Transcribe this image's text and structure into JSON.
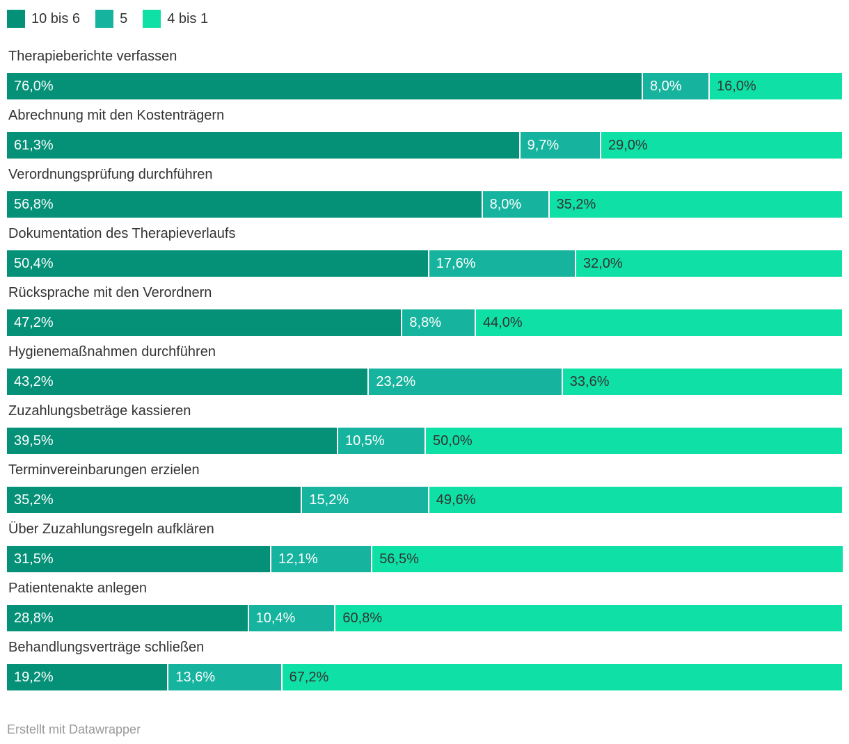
{
  "footer": {
    "attribution": "Erstellt mit Datawrapper"
  },
  "chart_data": {
    "type": "bar",
    "orientation": "horizontal",
    "stacked": true,
    "unit": "%",
    "xlim": [
      0,
      100
    ],
    "grid": false,
    "legend_position": "top-left",
    "categories": [
      "Therapieberichte verfassen",
      "Abrechnung mit den Kostenträgern",
      "Verordnungsprüfung durchführen",
      "Dokumentation des Therapieverlaufs",
      "Rücksprache mit den Verordnern",
      "Hygienemaßnahmen durchführen",
      "Zuzahlungsbeträge kassieren",
      "Terminvereinbarungen erzielen",
      "Über Zuzahlungsregeln aufklären",
      "Patientenakte anlegen",
      "Behandlungsverträge schließen"
    ],
    "series": [
      {
        "name": "10 bis 6",
        "color": "#059178",
        "text_color": "#ffffff",
        "values": [
          76.0,
          61.3,
          56.8,
          50.4,
          47.2,
          43.2,
          39.5,
          35.2,
          31.5,
          28.8,
          19.2
        ],
        "labels": [
          "76,0%",
          "61,3%",
          "56,8%",
          "50,4%",
          "47,2%",
          "43,2%",
          "39,5%",
          "35,2%",
          "31,5%",
          "28,8%",
          "19,2%"
        ]
      },
      {
        "name": "5",
        "color": "#16b49e",
        "text_color": "#ffffff",
        "values": [
          8.0,
          9.7,
          8.0,
          17.6,
          8.8,
          23.2,
          10.5,
          15.2,
          12.1,
          10.4,
          13.6
        ],
        "labels": [
          "8,0%",
          "9,7%",
          "8,0%",
          "17,6%",
          "8,8%",
          "23,2%",
          "10,5%",
          "15,2%",
          "12,1%",
          "10,4%",
          "13,6%"
        ]
      },
      {
        "name": "4 bis 1",
        "color": "#0fe0a6",
        "text_color": "#333333",
        "values": [
          16.0,
          29.0,
          35.2,
          32.0,
          44.0,
          33.6,
          50.0,
          49.6,
          56.5,
          60.8,
          67.2
        ],
        "labels": [
          "16,0%",
          "29,0%",
          "35,2%",
          "32,0%",
          "44,0%",
          "33,6%",
          "50,0%",
          "49,6%",
          "56,5%",
          "60,8%",
          "67,2%"
        ]
      }
    ]
  }
}
